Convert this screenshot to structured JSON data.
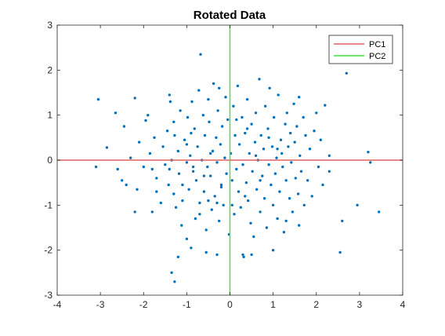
{
  "chart_data": {
    "type": "scatter",
    "title": "Rotated Data",
    "xlabel": "",
    "ylabel": "",
    "xlim": [
      -4,
      4
    ],
    "ylim": [
      -3,
      3
    ],
    "xticks": [
      "-4",
      "-3",
      "-2",
      "-1",
      "0",
      "1",
      "2",
      "3",
      "4"
    ],
    "yticks": [
      "-3",
      "-2",
      "-1",
      "0",
      "1",
      "2",
      "3"
    ],
    "grid": false,
    "legend": {
      "placement": "top-right",
      "entries": [
        "PC1",
        "PC2"
      ]
    },
    "colors": {
      "points": "#0072BD",
      "pc1": "#e06060",
      "pc2": "#40e040",
      "axes": "#262626"
    },
    "lines": [
      {
        "name": "PC1",
        "orientation": "horizontal",
        "value": 0
      },
      {
        "name": "PC2",
        "orientation": "vertical",
        "value": 0
      }
    ],
    "series": [
      {
        "points": [
          [
            -3.05,
            1.35
          ],
          [
            -2.85,
            0.28
          ],
          [
            -2.65,
            1.05
          ],
          [
            -2.5,
            -0.45
          ],
          [
            -2.4,
            -0.55
          ],
          [
            -2.45,
            0.75
          ],
          [
            -2.3,
            0.05
          ],
          [
            -2.2,
            1.38
          ],
          [
            -2.2,
            -1.15
          ],
          [
            -2.15,
            -0.65
          ],
          [
            -2.1,
            0.4
          ],
          [
            -2.0,
            -0.15
          ],
          [
            -1.95,
            0.88
          ],
          [
            -1.85,
            0.15
          ],
          [
            -1.8,
            -0.2
          ],
          [
            -1.8,
            -1.15
          ],
          [
            -1.75,
            0.5
          ],
          [
            -1.7,
            -0.4
          ],
          [
            -1.6,
            -0.95
          ],
          [
            -1.55,
            0.3
          ],
          [
            -1.5,
            -0.1
          ],
          [
            -1.45,
            0.65
          ],
          [
            -1.42,
            -0.55
          ],
          [
            -1.4,
            1.45
          ],
          [
            -1.38,
            1.3
          ],
          [
            -1.35,
            0.0
          ],
          [
            -1.3,
            -0.75
          ],
          [
            -1.28,
            0.55
          ],
          [
            -1.25,
            -1.05
          ],
          [
            -1.2,
            0.2
          ],
          [
            -1.18,
            -0.3
          ],
          [
            -1.15,
            1.1
          ],
          [
            -1.12,
            -1.45
          ],
          [
            -1.1,
            -0.9
          ],
          [
            -1.05,
            0.45
          ],
          [
            -1.0,
            -0.05
          ],
          [
            -1.0,
            -1.75
          ],
          [
            -0.98,
            0.95
          ],
          [
            -0.95,
            -0.65
          ],
          [
            -0.92,
            0.1
          ],
          [
            -0.9,
            -1.95
          ],
          [
            -0.88,
            1.3
          ],
          [
            -0.85,
            -0.25
          ],
          [
            -0.82,
            0.7
          ],
          [
            -0.8,
            -1.3
          ],
          [
            -0.78,
            -0.45
          ],
          [
            -0.75,
            0.3
          ],
          [
            -0.72,
            1.55
          ],
          [
            -0.7,
            -0.95
          ],
          [
            -0.68,
            2.35
          ],
          [
            -0.65,
            0.0
          ],
          [
            -0.62,
            1.0
          ],
          [
            -0.6,
            -0.7
          ],
          [
            -0.58,
            0.55
          ],
          [
            -0.55,
            -1.55
          ],
          [
            -0.52,
            -0.15
          ],
          [
            -0.5,
            1.35
          ],
          [
            -0.48,
            0.85
          ],
          [
            -0.45,
            -0.35
          ],
          [
            -0.42,
            -1.1
          ],
          [
            -0.4,
            0.2
          ],
          [
            -0.38,
            1.7
          ],
          [
            -0.35,
            -0.8
          ],
          [
            -0.32,
            0.5
          ],
          [
            -0.3,
            -0.05
          ],
          [
            -0.28,
            1.1
          ],
          [
            -0.25,
            -1.35
          ],
          [
            -0.22,
            0.35
          ],
          [
            -0.2,
            -0.55
          ],
          [
            -0.18,
            0.75
          ],
          [
            -0.15,
            -1.0
          ],
          [
            -0.12,
            0.05
          ],
          [
            -0.1,
            1.4
          ],
          [
            -0.08,
            -0.3
          ],
          [
            -0.05,
            0.9
          ],
          [
            -0.02,
            -1.65
          ],
          [
            -0.5,
            -0.9
          ],
          [
            -0.9,
            0.6
          ],
          [
            -1.3,
            0.85
          ],
          [
            -1.7,
            -0.7
          ],
          [
            0.02,
            0.15
          ],
          [
            0.05,
            -0.45
          ],
          [
            0.08,
            1.2
          ],
          [
            0.1,
            -1.2
          ],
          [
            0.12,
            0.55
          ],
          [
            0.15,
            -0.2
          ],
          [
            0.18,
            1.65
          ],
          [
            0.2,
            -0.7
          ],
          [
            0.22,
            0.35
          ],
          [
            0.25,
            -1.05
          ],
          [
            0.28,
            0.95
          ],
          [
            0.3,
            -0.1
          ],
          [
            0.32,
            -2.15
          ],
          [
            0.35,
            0.6
          ],
          [
            0.38,
            -0.5
          ],
          [
            0.4,
            1.35
          ],
          [
            0.42,
            -0.9
          ],
          [
            0.45,
            0.15
          ],
          [
            0.48,
            -1.4
          ],
          [
            0.5,
            0.8
          ],
          [
            0.52,
            -0.25
          ],
          [
            0.55,
            -1.7
          ],
          [
            0.58,
            0.4
          ],
          [
            0.6,
            1.05
          ],
          [
            0.62,
            -0.65
          ],
          [
            0.65,
            0.0
          ],
          [
            0.68,
            1.8
          ],
          [
            0.7,
            -1.15
          ],
          [
            0.72,
            0.55
          ],
          [
            0.75,
            -0.35
          ],
          [
            0.78,
            0.25
          ],
          [
            0.8,
            -0.85
          ],
          [
            0.82,
            1.2
          ],
          [
            0.85,
            -1.5
          ],
          [
            0.88,
            0.7
          ],
          [
            0.9,
            -0.1
          ],
          [
            0.92,
            1.6
          ],
          [
            0.95,
            -0.55
          ],
          [
            0.98,
            0.3
          ],
          [
            1.0,
            -1.0
          ],
          [
            1.02,
            0.95
          ],
          [
            1.05,
            -0.3
          ],
          [
            1.08,
            0.05
          ],
          [
            1.1,
            -1.3
          ],
          [
            1.12,
            1.45
          ],
          [
            1.15,
            -0.7
          ],
          [
            1.18,
            0.45
          ],
          [
            1.2,
            0.15
          ],
          [
            1.22,
            -0.15
          ],
          [
            1.25,
            -1.6
          ],
          [
            1.28,
            0.8
          ],
          [
            1.3,
            -0.45
          ],
          [
            1.32,
            1.05
          ],
          [
            1.35,
            0.3
          ],
          [
            1.38,
            -0.85
          ],
          [
            1.4,
            0.6
          ],
          [
            1.42,
            -0.05
          ],
          [
            1.45,
            -1.15
          ],
          [
            1.48,
            1.25
          ],
          [
            1.5,
            0.4
          ],
          [
            1.52,
            -0.4
          ],
          [
            1.55,
            0.75
          ],
          [
            1.58,
            -0.75
          ],
          [
            1.6,
            1.4
          ],
          [
            1.62,
            0.1
          ],
          [
            1.65,
            -0.25
          ],
          [
            1.7,
            0.95
          ],
          [
            1.72,
            -1.0
          ],
          [
            1.75,
            0.55
          ],
          [
            1.8,
            -0.45
          ],
          [
            1.85,
            0.25
          ],
          [
            1.9,
            -0.8
          ],
          [
            1.95,
            0.65
          ],
          [
            2.0,
            1.05
          ],
          [
            2.05,
            -0.15
          ],
          [
            2.1,
            0.45
          ],
          [
            2.15,
            -0.55
          ],
          [
            2.2,
            1.22
          ],
          [
            2.3,
            0.1
          ],
          [
            2.55,
            -2.05
          ],
          [
            2.6,
            -1.35
          ],
          [
            2.7,
            1.93
          ],
          [
            2.95,
            -1.0
          ],
          [
            3.2,
            0.18
          ],
          [
            3.25,
            -0.05
          ],
          [
            3.45,
            -1.15
          ],
          [
            0.3,
            -2.1
          ],
          [
            0.5,
            -2.1
          ],
          [
            -0.3,
            -0.95
          ],
          [
            -0.6,
            -0.35
          ],
          [
            -1.0,
            0.35
          ],
          [
            -1.4,
            -0.2
          ],
          [
            0.4,
            0.7
          ],
          [
            0.7,
            -0.45
          ],
          [
            1.1,
            0.25
          ],
          [
            -0.2,
            -0.6
          ],
          [
            -0.85,
            -0.15
          ],
          [
            0.15,
            0.9
          ],
          [
            0.6,
            0.1
          ],
          [
            -0.45,
            0.15
          ],
          [
            0.9,
            0.5
          ],
          [
            -1.1,
            -0.55
          ],
          [
            -0.25,
            1.6
          ],
          [
            0.35,
            -0.8
          ],
          [
            1.3,
            -1.35
          ],
          [
            -0.7,
            -1.2
          ],
          [
            0.05,
            -1.0
          ],
          [
            -2.6,
            -0.2
          ],
          [
            -3.1,
            -0.15
          ],
          [
            -1.9,
            1.0
          ],
          [
            1.6,
            -1.45
          ],
          [
            2.3,
            -0.25
          ],
          [
            -0.55,
            -2.05
          ],
          [
            -1.35,
            -2.5
          ],
          [
            -1.28,
            -2.7
          ],
          [
            -1.2,
            -2.15
          ],
          [
            -0.3,
            -2.1
          ],
          [
            1.0,
            -2.0
          ]
        ]
      }
    ]
  }
}
